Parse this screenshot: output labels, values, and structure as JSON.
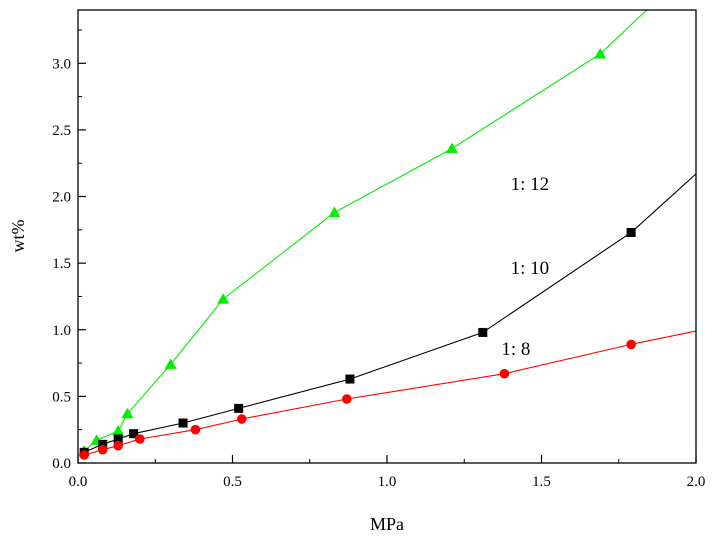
{
  "chart_data": {
    "type": "line",
    "title": "",
    "xlabel": "MPa",
    "ylabel": "wt%",
    "xlim": [
      0.0,
      2.0
    ],
    "ylim": [
      0.0,
      3.4
    ],
    "xticks": [
      0.0,
      0.5,
      1.0,
      1.5,
      2.0
    ],
    "xtick_labels": [
      "0.0",
      "0.5",
      "1.0",
      "1.5",
      "2.0"
    ],
    "yticks": [
      0.0,
      0.5,
      1.0,
      1.5,
      2.0,
      2.5,
      3.0
    ],
    "ytick_labels": [
      "0.0",
      "0.5",
      "1.0",
      "1.5",
      "2.0",
      "2.5",
      "3.0"
    ],
    "grid": false,
    "legend": "none",
    "series": [
      {
        "name": "1:  12",
        "color": "#00ee00",
        "marker": "triangle",
        "x": [
          0.02,
          0.06,
          0.13,
          0.16,
          0.3,
          0.47,
          0.83,
          1.21,
          1.69,
          1.85
        ],
        "y": [
          0.09,
          0.17,
          0.24,
          0.37,
          0.74,
          1.23,
          1.88,
          2.36,
          3.07,
          3.42
        ],
        "marker_count": 9
      },
      {
        "name": "1:  10",
        "color": "#000000",
        "marker": "square",
        "x": [
          0.02,
          0.08,
          0.13,
          0.18,
          0.34,
          0.52,
          0.88,
          1.31,
          1.79,
          2.0
        ],
        "y": [
          0.08,
          0.14,
          0.18,
          0.22,
          0.3,
          0.41,
          0.63,
          0.98,
          1.73,
          2.17
        ],
        "marker_count": 9
      },
      {
        "name": "1:  8",
        "color": "#ff0000",
        "marker": "circle",
        "x": [
          0.02,
          0.08,
          0.13,
          0.2,
          0.38,
          0.53,
          0.87,
          1.38,
          1.79,
          2.0
        ],
        "y": [
          0.06,
          0.1,
          0.13,
          0.18,
          0.25,
          0.33,
          0.48,
          0.67,
          0.89,
          0.99
        ],
        "marker_count": 9
      }
    ],
    "annotations": [
      {
        "text": "1:  12",
        "x": 1.4,
        "y": 2.05
      },
      {
        "text": "1:  10",
        "x": 1.4,
        "y": 1.42
      },
      {
        "text": "1:  8",
        "x": 1.37,
        "y": 0.81
      }
    ]
  }
}
